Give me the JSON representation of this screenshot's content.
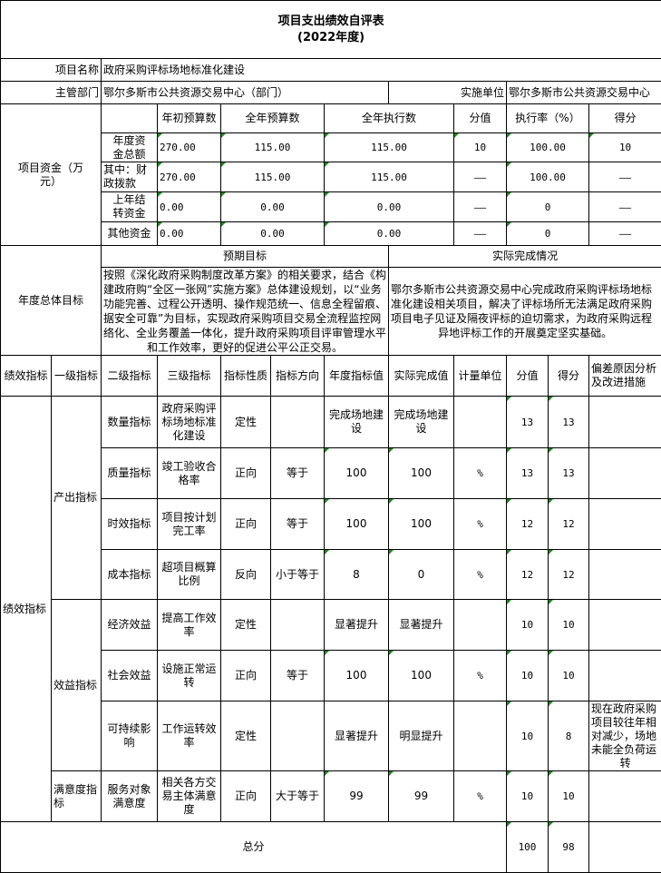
{
  "title": "项目支出绩效自评表",
  "subtitle": "(2022年度)",
  "project_name_label": "项目名称",
  "project_name": "政府采购评标场地标准化建设",
  "dept_label": "主管部门",
  "dept": "鄂尔多斯市公共资源交易中心（部门）",
  "unit_label": "实施单位",
  "unit": "鄂尔多斯市公共资源交易中心",
  "funds": {
    "label": "项目资金（万元）",
    "headers": [
      "年初预算数",
      "全年预算数",
      "全年执行数",
      "分值",
      "执行率（%）",
      "得分"
    ],
    "rows": [
      {
        "name": "年度资金总额",
        "initial": "270.00",
        "annual": "115.00",
        "executed": "115.00",
        "score_value": "10",
        "rate": "100.00",
        "score": "10"
      },
      {
        "name": "其中：财政拨款",
        "initial": "270.00",
        "annual": "115.00",
        "executed": "115.00",
        "score_value": "——",
        "rate": "100.00",
        "score": "——"
      },
      {
        "name": "上年结转资金",
        "initial": "0.00",
        "annual": "0.00",
        "executed": "0.00",
        "score_value": "——",
        "rate": "0",
        "score": "——"
      },
      {
        "name": "其他资金",
        "initial": "0.00",
        "annual": "0.00",
        "executed": "0.00",
        "score_value": "——",
        "rate": "0",
        "score": "——"
      }
    ]
  },
  "goals": {
    "label": "年度总体目标",
    "expected_label": "预期目标",
    "actual_label": "实际完成情况",
    "expected": "按照《深化政府采购制度改革方案》的相关要求，结合《构建政府购“全区一张网”实施方案》总体建设规划，以“业务功能完善、过程公开透明、操作规范统一、信息全程留痕、据安全可靠”为目标，实现政府采购项目交易全流程监控网络化、全业务覆盖一体化，提升政府采购项目评审管理水平和工作效率，更好的促进公平公正交易。",
    "actual": "鄂尔多斯市公共资源交易中心完成政府采购评标场地标准化建设相关项目，解决了评标场所无法满足政府采购项目电子见证及隔夜评标的迫切需求，为政府采购远程异地评标工作的开展奠定坚实基础。"
  },
  "perf": {
    "headers": [
      "绩效指标",
      "一级指标",
      "二级指标",
      "三级指标",
      "指标性质",
      "指标方向",
      "年度指标值",
      "实际完成值",
      "计量单位",
      "分值",
      "得分",
      "偏差原因分析及改进措施"
    ],
    "label": "绩效指标",
    "level1": [
      "产出指标",
      "效益指标",
      "满意度指标"
    ],
    "rows": [
      {
        "l2": "数量指标",
        "l3": "政府采购评标场地标准化建设",
        "nature": "定性",
        "dir": "",
        "target": "完成场地建设",
        "actual": "完成场地建设",
        "unit": "",
        "value": "13",
        "score": "13",
        "reason": ""
      },
      {
        "l2": "质量指标",
        "l3": "竣工验收合格率",
        "nature": "正向",
        "dir": "等于",
        "target": "100",
        "actual": "100",
        "unit": "%",
        "value": "13",
        "score": "13",
        "reason": ""
      },
      {
        "l2": "时效指标",
        "l3": "项目按计划完工率",
        "nature": "正向",
        "dir": "等于",
        "target": "100",
        "actual": "100",
        "unit": "%",
        "value": "12",
        "score": "12",
        "reason": ""
      },
      {
        "l2": "成本指标",
        "l3": "超项目概算比例",
        "nature": "反向",
        "dir": "小于等于",
        "target": "8",
        "actual": "0",
        "unit": "%",
        "value": "12",
        "score": "12",
        "reason": ""
      },
      {
        "l2": "经济效益",
        "l3": "提高工作效率",
        "nature": "定性",
        "dir": "",
        "target": "显著提升",
        "actual": "显著提升",
        "unit": "",
        "value": "10",
        "score": "10",
        "reason": ""
      },
      {
        "l2": "社会效益",
        "l3": "设施正常运转",
        "nature": "正向",
        "dir": "等于",
        "target": "100",
        "actual": "100",
        "unit": "%",
        "value": "10",
        "score": "10",
        "reason": ""
      },
      {
        "l2": "可持续影响",
        "l3": "工作运转效率",
        "nature": "定性",
        "dir": "",
        "target": "显著提升",
        "actual": "明显提升",
        "unit": "",
        "value": "10",
        "score": "8",
        "reason": "现在政府采购项目较往年相对减少，场地未能全负荷运转"
      },
      {
        "l2": "服务对象满意度",
        "l3": "相关各方交易主体满意度",
        "nature": "正向",
        "dir": "大于等于",
        "target": "99",
        "actual": "99",
        "unit": "%",
        "value": "10",
        "score": "10",
        "reason": ""
      }
    ]
  },
  "total": {
    "label": "总分",
    "value": "100",
    "score": "98"
  },
  "colors": {
    "border": "#000000",
    "flag": "#1a8a1a"
  }
}
